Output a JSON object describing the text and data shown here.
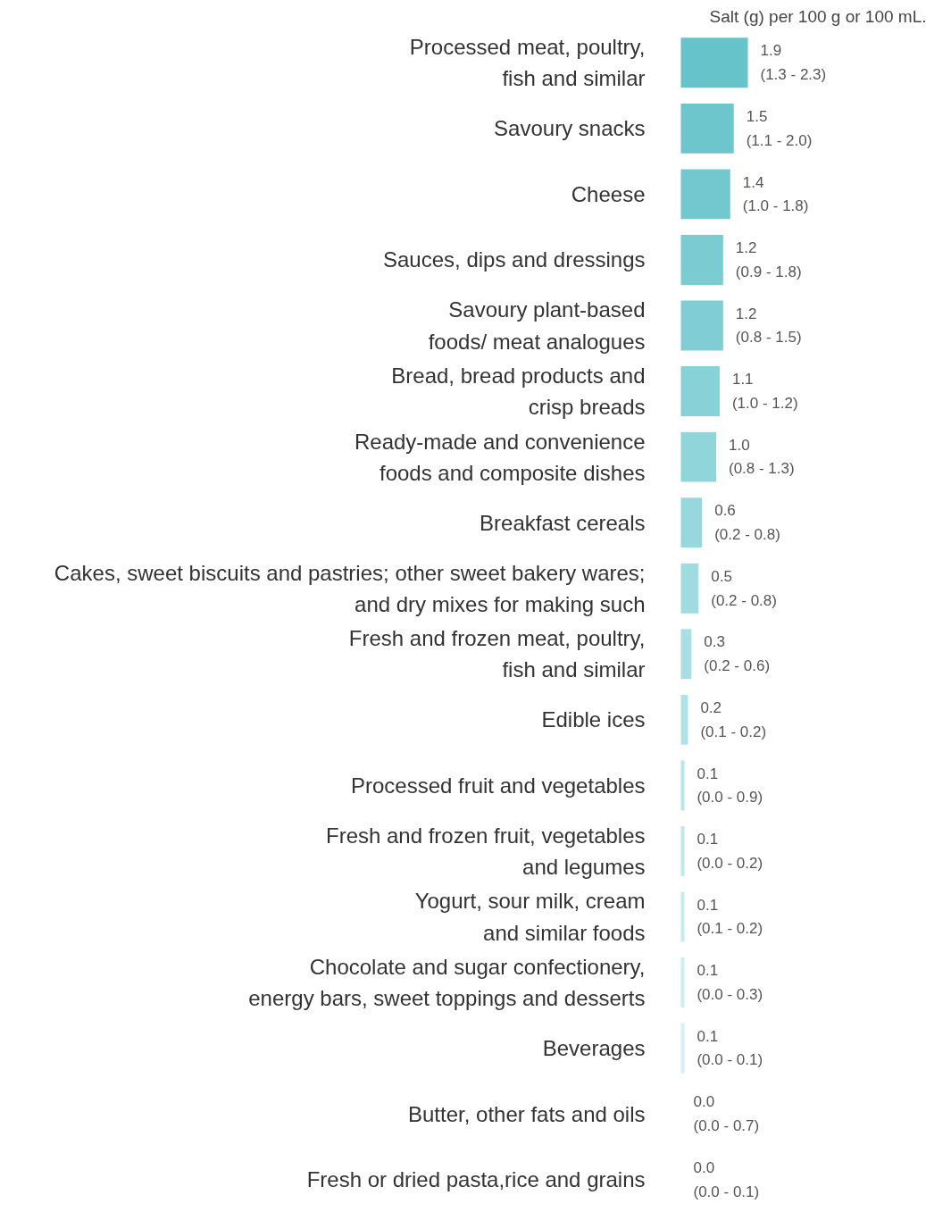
{
  "chart_data": {
    "type": "bar",
    "orientation": "horizontal",
    "title": "Salt (g) per 100 g or 100 mL.",
    "categories": [
      "Processed meat, poultry,\nfish and similar",
      "Savoury snacks",
      "Cheese",
      "Sauces, dips and dressings",
      "Savoury plant-based\nfoods/ meat analogues",
      "Bread, bread products and\ncrisp breads",
      "Ready-made and convenience\nfoods and composite dishes",
      "Breakfast cereals",
      "Cakes, sweet biscuits and pastries; other sweet bakery wares;\nand dry mixes for making such",
      "Fresh and frozen meat, poultry,\nfish and similar",
      "Edible ices",
      "Processed fruit and vegetables",
      "Fresh and frozen fruit, vegetables\nand legumes",
      "Yogurt, sour milk, cream\nand similar foods",
      "Chocolate and sugar confectionery,\nenergy bars, sweet toppings and desserts",
      "Beverages",
      "Butter, other fats and oils",
      "Fresh or dried pasta,rice and grains"
    ],
    "values": [
      1.9,
      1.5,
      1.4,
      1.2,
      1.2,
      1.1,
      1.0,
      0.6,
      0.5,
      0.3,
      0.2,
      0.1,
      0.1,
      0.1,
      0.1,
      0.1,
      0.0,
      0.0
    ],
    "value_labels": [
      "1.9\n(1.3 - 2.3)",
      "1.5\n(1.1 - 2.0)",
      "1.4\n(1.0 - 1.8)",
      "1.2\n(0.9 - 1.8)",
      "1.2\n(0.8 - 1.5)",
      "1.1\n(1.0 - 1.2)",
      "1.0\n(0.8 - 1.3)",
      "0.6\n(0.2 - 0.8)",
      "0.5\n(0.2 - 0.8)",
      "0.3\n(0.2 - 0.6)",
      "0.2\n(0.1 - 0.2)",
      "0.1\n(0.0 - 0.9)",
      "0.1\n(0.0 - 0.2)",
      "0.1\n(0.1 - 0.2)",
      "0.1\n(0.0 - 0.3)",
      "0.1\n(0.0 - 0.1)",
      "0.0\n(0.0 - 0.7)",
      "0.0\n(0.0 - 0.1)"
    ],
    "colors": [
      "#66c3ca",
      "#6cc6cc",
      "#72c8ce",
      "#7accd1",
      "#80ced3",
      "#88d1d6",
      "#90d5d9",
      "#98d8dc",
      "#a0dbdf",
      "#a8dfe2",
      "#b0e2e5",
      "#b8e5e8",
      "#bfe8ea",
      "#c6ebed",
      "#cdeef0",
      "#d4f1f2",
      "#66c3ca",
      "#d4f1f2"
    ]
  }
}
